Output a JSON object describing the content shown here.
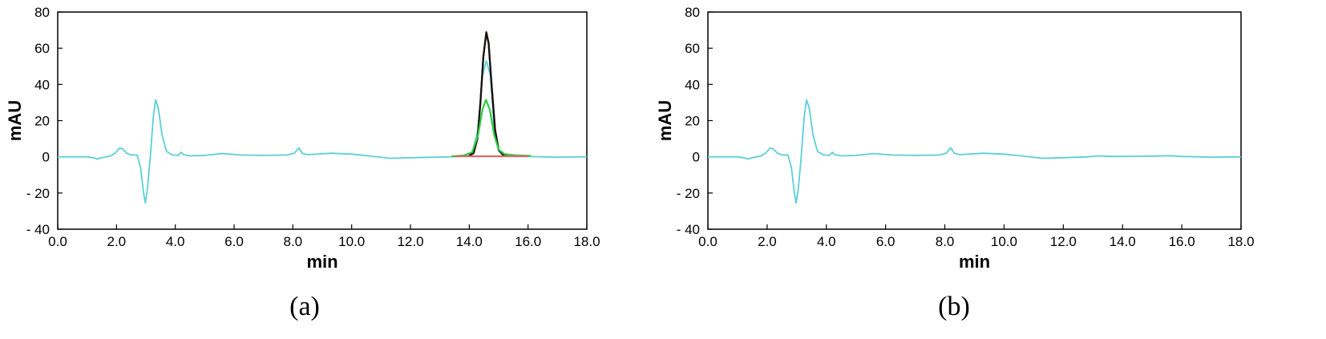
{
  "chart_data": [
    {
      "type": "line",
      "panel_label": "(a)",
      "xlabel": "min",
      "ylabel": "mAU",
      "xlim": [
        0,
        18
      ],
      "ylim": [
        -40,
        80
      ],
      "xticks": [
        "0.0",
        "2.0",
        "4.0",
        "6.0",
        "8.0",
        "10.0",
        "12.0",
        "14.0",
        "16.0",
        "18.0"
      ],
      "yticks": [
        "80",
        "60",
        "40",
        "20",
        "0",
        "- 20",
        "- 40"
      ],
      "grid": false,
      "series": [
        {
          "color": "#5bcfd6",
          "points": [
            [
              0,
              0
            ],
            [
              1.0,
              0
            ],
            [
              1.2,
              -0.5
            ],
            [
              1.35,
              -1.2
            ],
            [
              1.5,
              -0.5
            ],
            [
              1.8,
              0.5
            ],
            [
              1.95,
              2
            ],
            [
              2.1,
              4.8
            ],
            [
              2.2,
              4.5
            ],
            [
              2.35,
              2
            ],
            [
              2.5,
              1
            ],
            [
              2.7,
              1
            ],
            [
              2.82,
              -6
            ],
            [
              2.92,
              -20
            ],
            [
              2.98,
              -25.5
            ],
            [
              3.05,
              -18
            ],
            [
              3.15,
              0
            ],
            [
              3.25,
              22
            ],
            [
              3.33,
              31.5
            ],
            [
              3.42,
              27
            ],
            [
              3.55,
              12
            ],
            [
              3.7,
              3
            ],
            [
              3.9,
              1
            ],
            [
              4.1,
              0.8
            ],
            [
              4.2,
              2.5
            ],
            [
              4.28,
              1.2
            ],
            [
              4.5,
              0.5
            ],
            [
              5.0,
              0.8
            ],
            [
              5.6,
              1.8
            ],
            [
              6.2,
              1
            ],
            [
              7.0,
              0.8
            ],
            [
              7.8,
              1
            ],
            [
              8.05,
              2
            ],
            [
              8.2,
              5
            ],
            [
              8.32,
              2
            ],
            [
              8.5,
              1.2
            ],
            [
              9.3,
              2
            ],
            [
              10.0,
              1.5
            ],
            [
              10.7,
              0.3
            ],
            [
              11.3,
              -0.8
            ],
            [
              12.0,
              -0.5
            ],
            [
              12.8,
              -0.2
            ],
            [
              13.4,
              0
            ],
            [
              13.8,
              0.3
            ],
            [
              14.1,
              2
            ],
            [
              14.3,
              15
            ],
            [
              14.45,
              45
            ],
            [
              14.58,
              53
            ],
            [
              14.72,
              45
            ],
            [
              14.85,
              15
            ],
            [
              15.0,
              3
            ],
            [
              15.3,
              0.5
            ],
            [
              15.8,
              0.3
            ],
            [
              16.5,
              0
            ],
            [
              17.0,
              -0.2
            ],
            [
              18.0,
              0
            ]
          ]
        },
        {
          "color": "#8b1a1a",
          "points": [
            [
              14.0,
              0.5
            ],
            [
              14.15,
              2
            ],
            [
              14.28,
              10
            ],
            [
              14.38,
              30
            ],
            [
              14.48,
              55
            ],
            [
              14.58,
              69
            ],
            [
              14.66,
              63
            ],
            [
              14.76,
              40
            ],
            [
              14.88,
              15
            ],
            [
              15.0,
              4
            ],
            [
              15.15,
              1
            ],
            [
              15.3,
              0.5
            ]
          ]
        },
        {
          "color": "#111111",
          "points": [
            [
              14.0,
              0.6
            ],
            [
              14.15,
              2.2
            ],
            [
              14.28,
              10.5
            ],
            [
              14.38,
              30.5
            ],
            [
              14.48,
              55.5
            ],
            [
              14.58,
              68.5
            ],
            [
              14.66,
              62.5
            ],
            [
              14.76,
              39.5
            ],
            [
              14.88,
              14.5
            ],
            [
              15.0,
              3.8
            ],
            [
              15.15,
              1
            ],
            [
              15.3,
              0.6
            ]
          ]
        },
        {
          "color": "#2ecc40",
          "points": [
            [
              13.4,
              0.3
            ],
            [
              13.8,
              0.7
            ],
            [
              14.1,
              2.5
            ],
            [
              14.3,
              12
            ],
            [
              14.45,
              26
            ],
            [
              14.57,
              31.5
            ],
            [
              14.7,
              26
            ],
            [
              14.85,
              12
            ],
            [
              15.0,
              4
            ],
            [
              15.2,
              1.5
            ],
            [
              15.6,
              0.8
            ],
            [
              16.1,
              0.5
            ]
          ]
        },
        {
          "color": "#e06666",
          "points": [
            [
              13.5,
              0.3
            ],
            [
              16.0,
              0.3
            ]
          ]
        }
      ]
    },
    {
      "type": "line",
      "panel_label": "(b)",
      "xlabel": "min",
      "ylabel": "mAU",
      "xlim": [
        0,
        18
      ],
      "ylim": [
        -40,
        80
      ],
      "xticks": [
        "0.0",
        "2.0",
        "4.0",
        "6.0",
        "8.0",
        "10.0",
        "12.0",
        "14.0",
        "16.0",
        "18.0"
      ],
      "yticks": [
        "80",
        "60",
        "40",
        "20",
        "0",
        "- 20",
        "- 40"
      ],
      "grid": false,
      "series": [
        {
          "color": "#5bcfd6",
          "points": [
            [
              0,
              0
            ],
            [
              1.0,
              0
            ],
            [
              1.2,
              -0.5
            ],
            [
              1.35,
              -1.2
            ],
            [
              1.5,
              -0.5
            ],
            [
              1.8,
              0.5
            ],
            [
              1.95,
              2
            ],
            [
              2.1,
              4.8
            ],
            [
              2.2,
              4.5
            ],
            [
              2.35,
              2
            ],
            [
              2.5,
              1
            ],
            [
              2.7,
              1
            ],
            [
              2.82,
              -6
            ],
            [
              2.92,
              -20
            ],
            [
              2.98,
              -25.5
            ],
            [
              3.05,
              -18
            ],
            [
              3.15,
              0
            ],
            [
              3.25,
              22
            ],
            [
              3.33,
              31.5
            ],
            [
              3.42,
              27
            ],
            [
              3.55,
              12
            ],
            [
              3.7,
              3
            ],
            [
              3.9,
              1
            ],
            [
              4.1,
              0.8
            ],
            [
              4.2,
              2.5
            ],
            [
              4.28,
              1.2
            ],
            [
              4.5,
              0.5
            ],
            [
              5.0,
              0.8
            ],
            [
              5.6,
              1.8
            ],
            [
              6.2,
              1
            ],
            [
              7.0,
              0.8
            ],
            [
              7.8,
              1
            ],
            [
              8.05,
              2
            ],
            [
              8.2,
              5
            ],
            [
              8.32,
              2
            ],
            [
              8.5,
              1.2
            ],
            [
              9.3,
              2
            ],
            [
              10.0,
              1.5
            ],
            [
              10.7,
              0.3
            ],
            [
              11.3,
              -0.8
            ],
            [
              12.0,
              -0.5
            ],
            [
              12.8,
              0
            ],
            [
              13.2,
              0.5
            ],
            [
              13.6,
              0.2
            ],
            [
              14.0,
              0.2
            ],
            [
              14.4,
              0.3
            ],
            [
              15.0,
              0.4
            ],
            [
              15.6,
              0.6
            ],
            [
              16.0,
              0.2
            ],
            [
              17.0,
              -0.2
            ],
            [
              18.0,
              0
            ]
          ]
        }
      ]
    }
  ]
}
